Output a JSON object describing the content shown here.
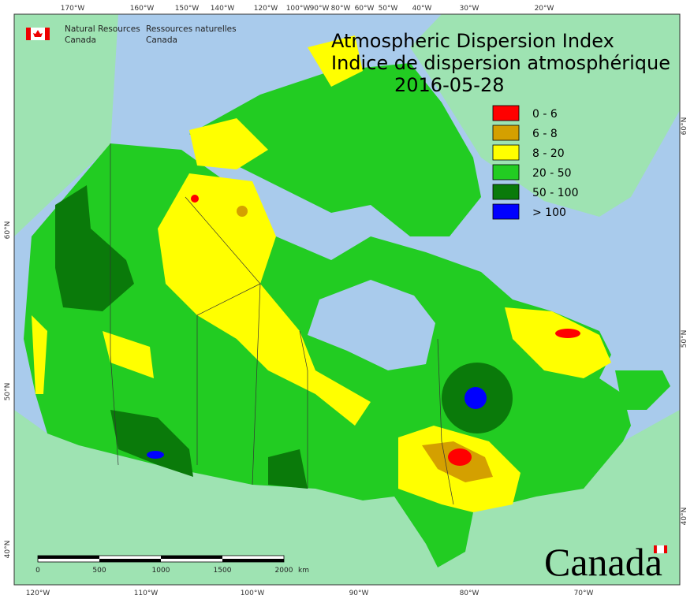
{
  "agency": {
    "en_line1": "Natural Resources",
    "en_line2": "Canada",
    "fr_line1": "Ressources naturelles",
    "fr_line2": "Canada"
  },
  "title": {
    "line1": "Atmospheric Dispersion Index",
    "line2": "Indice de dispersion atmosphérique",
    "date": "2016-05-28"
  },
  "legend": [
    {
      "label": "0 - 6",
      "color": "#ff0000"
    },
    {
      "label": "6 - 8",
      "color": "#d4a000"
    },
    {
      "label": "8 - 20",
      "color": "#ffff00"
    },
    {
      "label": "20 - 50",
      "color": "#22cc22"
    },
    {
      "label": "50 - 100",
      "color": "#0a7a0a"
    },
    {
      "label": "> 100",
      "color": "#0000ff"
    }
  ],
  "graticule": {
    "top": [
      "170°W",
      "160°W",
      "150°W",
      "140°W",
      "120°W",
      "100°W",
      "90°W",
      "80°W",
      "60°W",
      "50°W",
      "40°W",
      "30°W",
      "20°W"
    ],
    "bottom": [
      "120°W",
      "110°W",
      "100°W",
      "90°W",
      "80°W",
      "70°W"
    ],
    "left": [
      "60°N",
      "50°N",
      "40°N"
    ],
    "right": [
      "60°N",
      "50°N",
      "40°N"
    ]
  },
  "scale_bar": {
    "labels": [
      "0",
      "500",
      "1000",
      "1500",
      "2000"
    ],
    "unit": "km"
  },
  "wordmark": "Canada"
}
